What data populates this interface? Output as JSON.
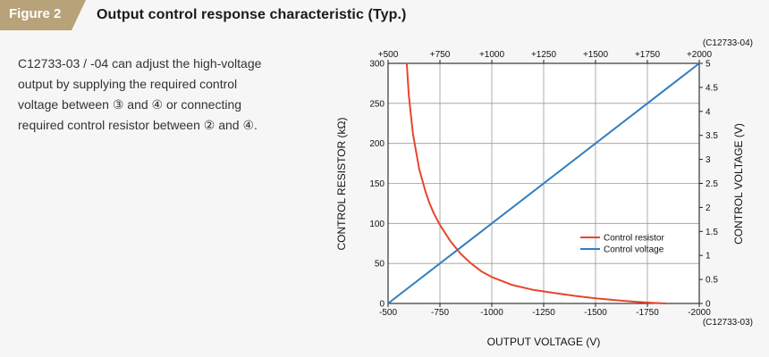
{
  "figure": {
    "tag": "Figure 2",
    "title": "Output control response characteristic (Typ.)",
    "tag_color": "#b7a27a"
  },
  "description": [
    "C12733-03 / -04 can adjust the high-voltage",
    "output by supplying the required control",
    "voltage between ③ and ④ or connecting",
    "required control resistor between ② and ④."
  ],
  "chart_data": {
    "type": "line",
    "xlabel": "OUTPUT VOLTAGE (V)",
    "x_bottom": {
      "range": [
        -500,
        -2000
      ],
      "ticks": [
        -500,
        -750,
        -1000,
        -1250,
        -1500,
        -1750,
        -2000
      ],
      "tick_labels": [
        "-500",
        "-750",
        "-1000",
        "-1250",
        "-1500",
        "-1750",
        "-2000"
      ],
      "model": "(C12733-03)"
    },
    "x_top": {
      "range": [
        500,
        2000
      ],
      "ticks": [
        500,
        750,
        1000,
        1250,
        1500,
        1750,
        2000
      ],
      "tick_labels": [
        "+500",
        "+750",
        "+1000",
        "+1250",
        "+1500",
        "+1750",
        "+2000"
      ],
      "model": "(C12733-04)"
    },
    "y_left": {
      "label": "CONTROL RESISTOR (kΩ)",
      "range": [
        0,
        300
      ],
      "ticks": [
        0,
        50,
        100,
        150,
        200,
        250,
        300
      ],
      "tick_labels": [
        "0",
        "50",
        "100",
        "150",
        "200",
        "250",
        "300"
      ]
    },
    "y_right": {
      "label": "CONTROL VOLTAGE (V)",
      "range": [
        0,
        5
      ],
      "ticks": [
        0,
        0.5,
        1,
        1.5,
        2,
        2.5,
        3,
        3.5,
        4,
        4.5,
        5
      ],
      "tick_labels": [
        "0",
        "0.5",
        "1",
        "1.5",
        "2",
        "2.5",
        "3",
        "3.5",
        "4",
        "4.5",
        "5"
      ]
    },
    "grid": true,
    "legend_position": "lower-right",
    "series": [
      {
        "name": "Control resistor",
        "axis": "left",
        "color": "#e8462c",
        "x": [
          590,
          600,
          620,
          650,
          680,
          700,
          720,
          750,
          780,
          800,
          850,
          900,
          950,
          1000,
          1100,
          1200,
          1300,
          1400,
          1500,
          1600,
          1700,
          1800,
          1840
        ],
        "y": [
          300,
          260,
          212,
          168,
          140,
          125,
          113,
          98,
          86,
          78,
          62,
          50,
          40,
          33,
          23,
          17,
          13,
          9.5,
          6.5,
          4,
          2,
          0.5,
          0
        ]
      },
      {
        "name": "Control voltage",
        "axis": "right",
        "color": "#2f7ec1",
        "x": [
          500,
          2000
        ],
        "y": [
          0,
          5
        ]
      }
    ]
  }
}
